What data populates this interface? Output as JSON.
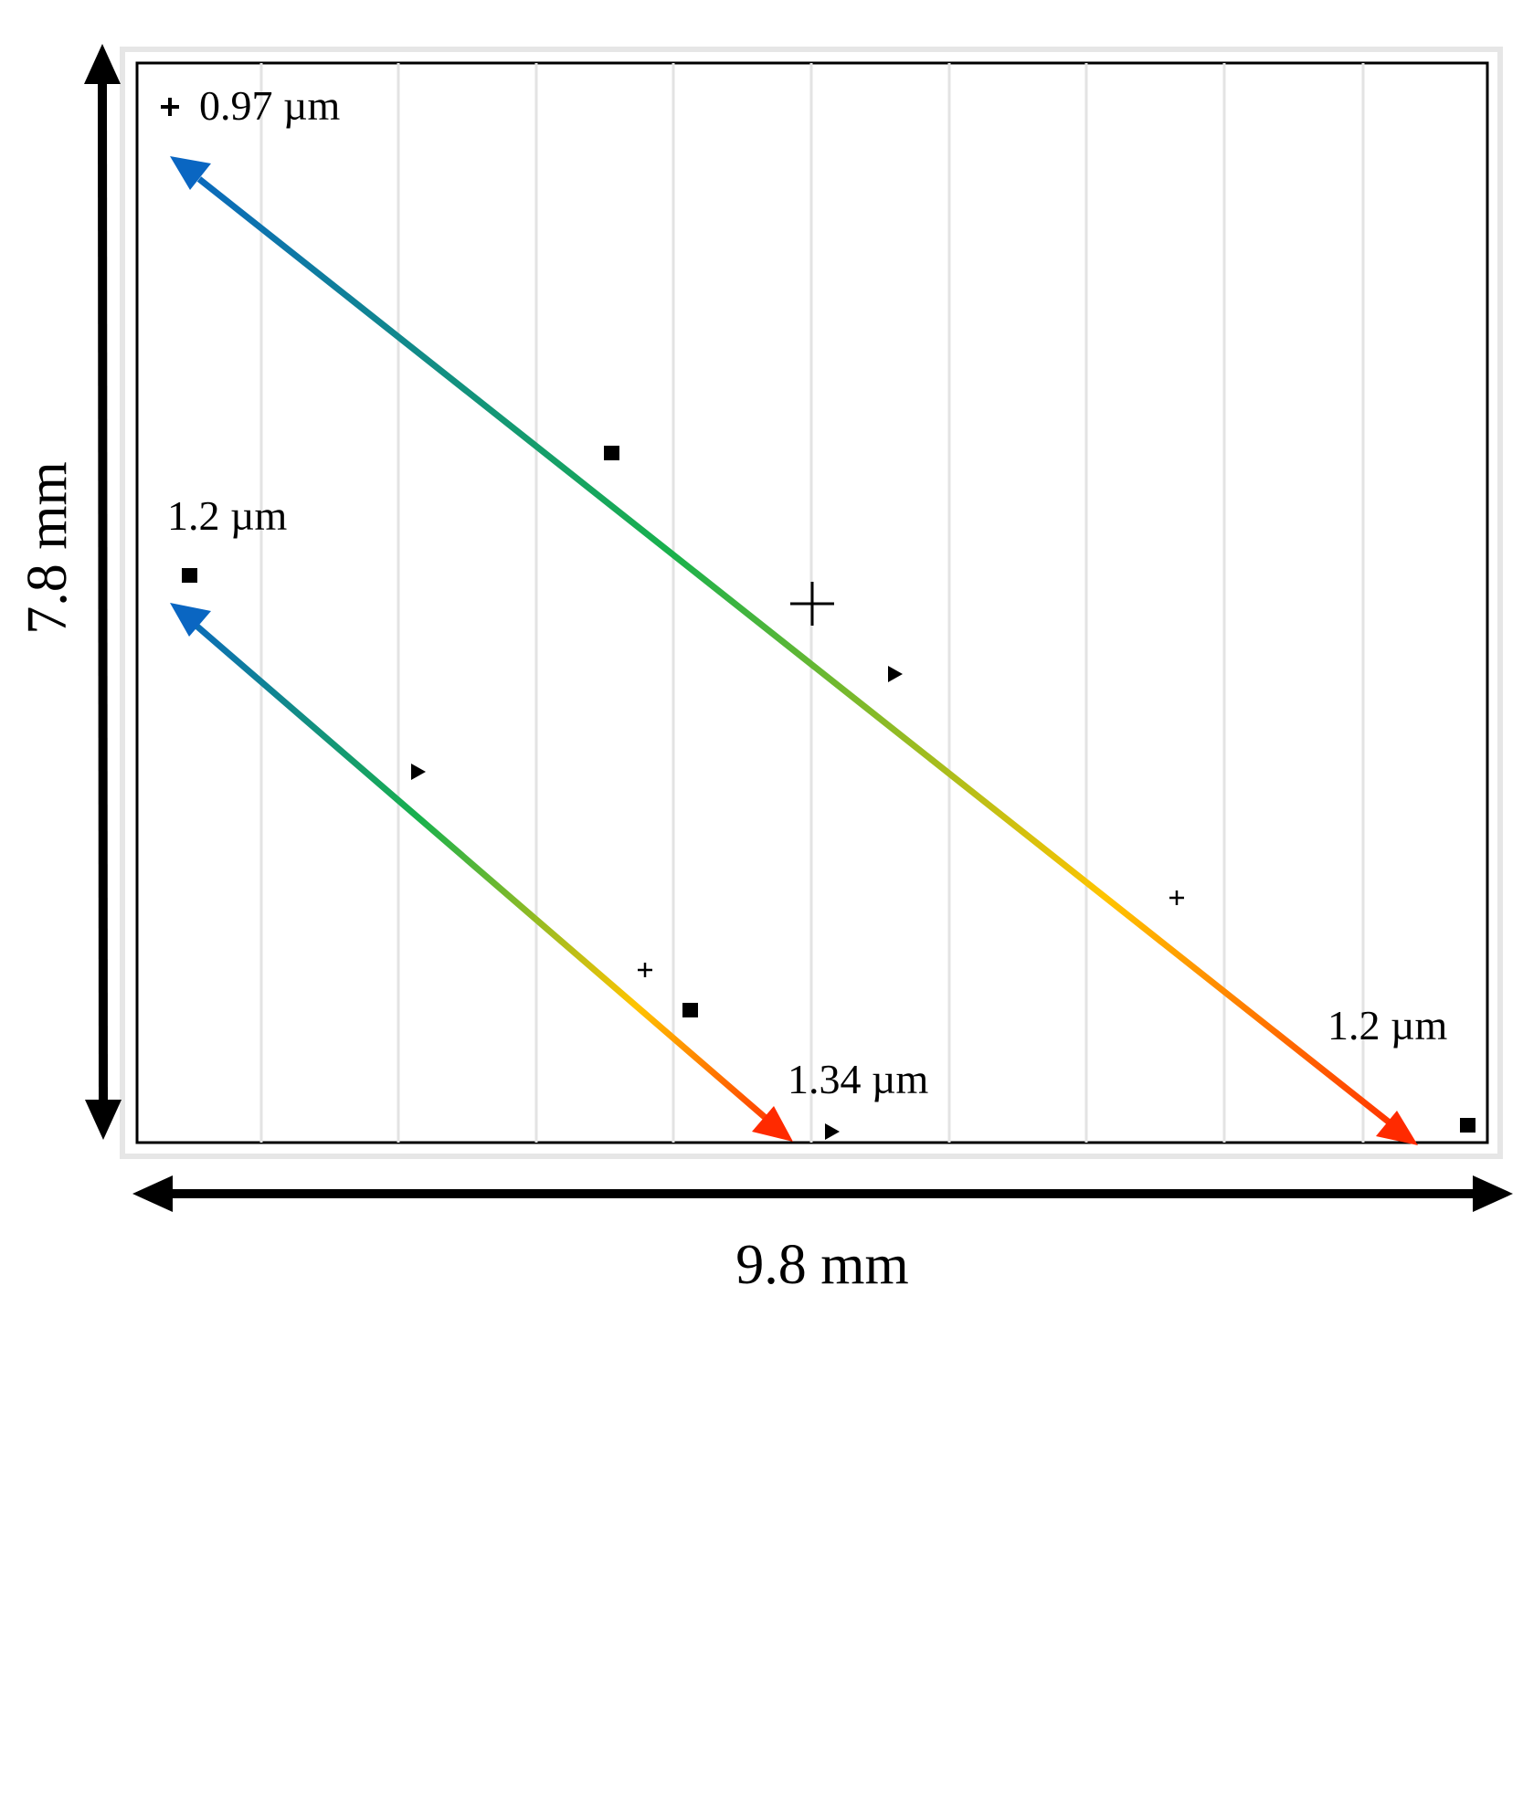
{
  "dimensions": {
    "width_label": "9.8 mm",
    "height_label": "7.8 mm"
  },
  "annotations": {
    "top_left": "0.97 µm",
    "mid_left": "1.2 µm",
    "bottom_mid": "1.34 µm",
    "bottom_right": "1.2 µm"
  },
  "gradient_colors": [
    "#0a66c2",
    "#19b14c",
    "#ffc400",
    "#ff2a00"
  ],
  "markers": [
    {
      "shape": "cross",
      "label": "top_left"
    },
    {
      "shape": "square",
      "label": "mid_left"
    },
    {
      "shape": "square"
    },
    {
      "shape": "cross-large"
    },
    {
      "shape": "triangle"
    },
    {
      "shape": "triangle"
    },
    {
      "shape": "cross"
    },
    {
      "shape": "cross"
    },
    {
      "shape": "square"
    },
    {
      "shape": "triangle"
    },
    {
      "shape": "square"
    }
  ]
}
